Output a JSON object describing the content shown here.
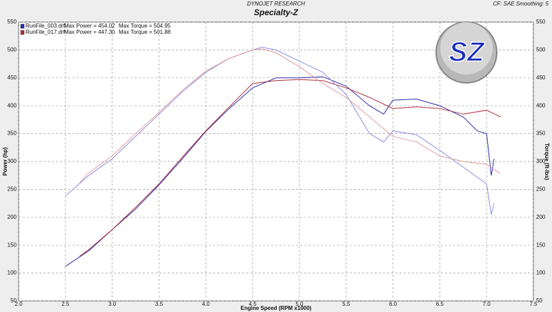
{
  "chart_data": {
    "type": "line",
    "header": "DYNOJET RESEARCH",
    "title": "Specialty-Z",
    "corner_note": "CF: SAE  Smoothing: 5",
    "logo": "SZ",
    "xlabel": "Engine Speed (RPM x1000)",
    "ylabel": "Power (hp)",
    "y2label": "Torque (ft-lbs)",
    "legend": [
      {
        "file": "RunFile_003.drf",
        "power": "Max Power = 454.02",
        "torque": "Max Torque = 504.95",
        "color": "#2a2aa8"
      },
      {
        "file": "RunFile_017.drf",
        "power": "Max Power = 447.30",
        "torque": "Max Torque = 501.88",
        "color": "#b02a3a"
      }
    ],
    "xlim": [
      2.0,
      7.5
    ],
    "xticks": [
      {
        "value": 2.0,
        "label": "2.0"
      },
      {
        "value": 2.5,
        "label": "2.5"
      },
      {
        "value": 3.0,
        "label": "3.0"
      },
      {
        "value": 3.5,
        "label": "3.5"
      },
      {
        "value": 4.0,
        "label": "4.0"
      },
      {
        "value": 4.5,
        "label": "4.5"
      },
      {
        "value": 5.0,
        "label": "5.0"
      },
      {
        "value": 5.5,
        "label": "5.5"
      },
      {
        "value": 6.0,
        "label": "6.0"
      },
      {
        "value": 6.5,
        "label": "6.5"
      },
      {
        "value": 7.0,
        "label": "7.0"
      },
      {
        "value": 7.5,
        "label": "7.5"
      }
    ],
    "ylim": [
      50,
      550
    ],
    "yticks": [
      50,
      100,
      150,
      200,
      250,
      300,
      350,
      400,
      450,
      500,
      550
    ],
    "y2lim": [
      50,
      550
    ],
    "y2ticks": [
      50,
      100,
      150,
      200,
      250,
      300,
      350,
      400,
      450,
      500,
      550
    ],
    "grid": true,
    "series": [
      {
        "color": "#2a2aa8",
        "axis": "y",
        "x": [
          2.5,
          2.75,
          3.0,
          3.25,
          3.5,
          3.75,
          4.0,
          4.25,
          4.5,
          4.75,
          5.0,
          5.25,
          5.5,
          5.75,
          5.9,
          6.0,
          6.25,
          6.5,
          6.75,
          6.9,
          7.0,
          7.05,
          7.08
        ],
        "values": [
          112,
          140,
          178,
          215,
          258,
          305,
          354,
          395,
          432,
          450,
          450,
          452,
          435,
          400,
          385,
          410,
          412,
          400,
          380,
          355,
          350,
          275,
          305
        ]
      },
      {
        "color": "#b02a3a",
        "axis": "y",
        "x": [
          2.65,
          2.75,
          3.0,
          3.25,
          3.5,
          3.75,
          4.0,
          4.25,
          4.5,
          4.75,
          5.0,
          5.25,
          5.5,
          5.75,
          6.0,
          6.25,
          6.5,
          6.75,
          7.0,
          7.15
        ],
        "values": [
          130,
          142,
          178,
          218,
          260,
          308,
          355,
          398,
          440,
          445,
          447,
          445,
          432,
          415,
          395,
          398,
          395,
          385,
          392,
          380
        ]
      },
      {
        "color": "#8a8ee0",
        "axis": "y2",
        "x": [
          2.5,
          2.75,
          3.0,
          3.25,
          3.5,
          3.75,
          4.0,
          4.25,
          4.5,
          4.6,
          4.75,
          5.0,
          5.25,
          5.5,
          5.75,
          5.9,
          6.0,
          6.25,
          6.5,
          6.75,
          7.0,
          7.05,
          7.08
        ],
        "values": [
          238,
          275,
          305,
          345,
          385,
          425,
          460,
          485,
          500,
          505,
          500,
          480,
          460,
          420,
          350,
          335,
          355,
          348,
          320,
          290,
          260,
          205,
          225
        ]
      },
      {
        "color": "#e09aa0",
        "axis": "y2",
        "x": [
          2.65,
          2.75,
          3.0,
          3.25,
          3.5,
          3.75,
          4.0,
          4.25,
          4.5,
          4.6,
          4.75,
          5.0,
          5.25,
          5.5,
          5.75,
          6.0,
          6.25,
          6.5,
          6.75,
          7.0,
          7.15
        ],
        "values": [
          262,
          280,
          310,
          350,
          388,
          428,
          462,
          485,
          500,
          502,
          495,
          470,
          440,
          415,
          380,
          345,
          335,
          310,
          300,
          295,
          278
        ]
      }
    ]
  }
}
